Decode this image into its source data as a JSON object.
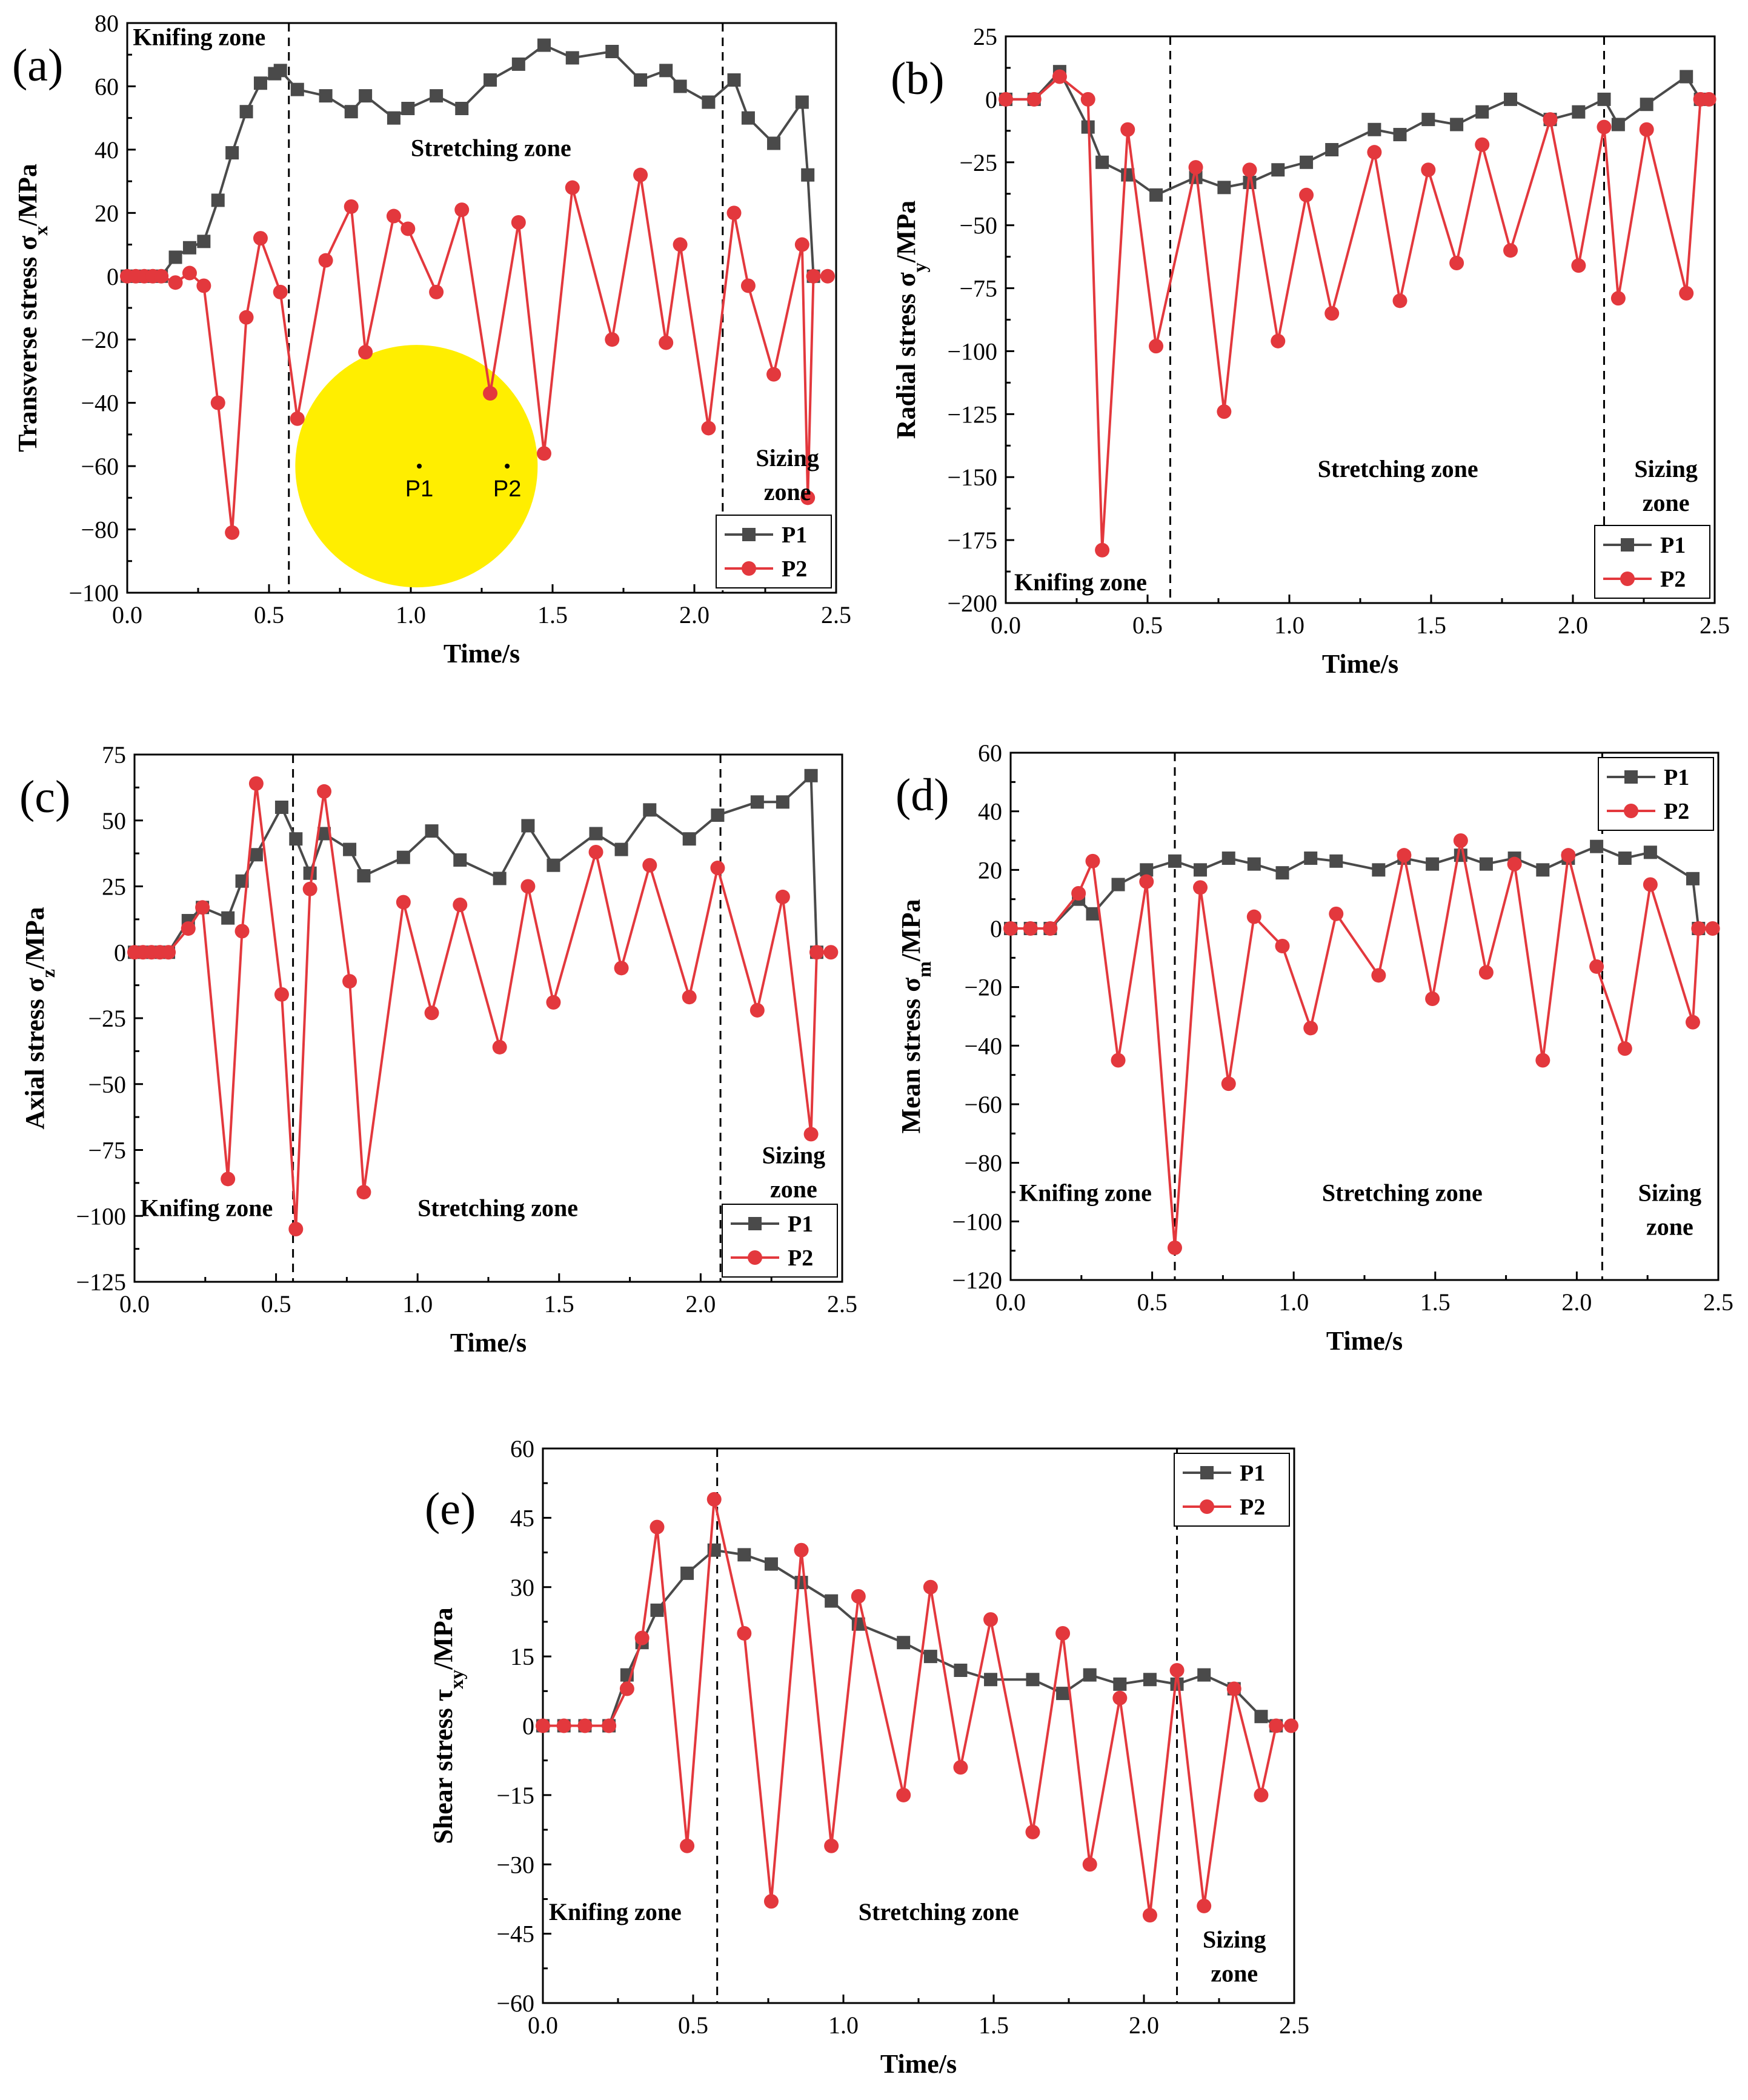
{
  "colors": {
    "P1": "#4a4a4a",
    "P2": "#e3383d",
    "circle": "#ffee00"
  },
  "chart_data": [
    {
      "id": "a",
      "type": "line",
      "panel_label": "(a)",
      "xlabel": "Time/s",
      "ylabel_parts": [
        "Transverse stress σ",
        "x",
        "/MPa"
      ],
      "xlim": [
        0,
        2.5
      ],
      "ylim": [
        -100,
        80
      ],
      "xticks": [
        0,
        0.5,
        1,
        1.5,
        2,
        2.5
      ],
      "xtick_labels": [
        "0.0",
        "0.5",
        "1.0",
        "1.5",
        "2.0",
        "2.5"
      ],
      "yticks": [
        -100,
        -80,
        -60,
        -40,
        -20,
        0,
        20,
        40,
        60,
        80
      ],
      "ytick_labels": [
        "−100",
        "−80",
        "−60",
        "−40",
        "−20",
        "0",
        "20",
        "40",
        "60",
        "80"
      ],
      "vlines": [
        0.57,
        2.1
      ],
      "annotations": [
        {
          "lines": [
            "Knifing zone"
          ],
          "x": 0.02,
          "y": 73
        },
        {
          "lines": [
            "Stretching zone"
          ],
          "x": 1.0,
          "y": 38
        },
        {
          "lines": [
            "Sizing",
            "zone"
          ],
          "x": 2.2,
          "y": -60
        }
      ],
      "legend": [
        "P1",
        "P2"
      ],
      "legend_pos": "bottom-right",
      "inset": {
        "type": "circle",
        "cx": 1.02,
        "cy": -60,
        "points": [
          {
            "label": "P1",
            "x": 1.03,
            "y": -60
          },
          {
            "label": "P2",
            "x": 1.34,
            "y": -60
          }
        ]
      },
      "series": [
        {
          "name": "P1",
          "x": [
            0,
            0.03,
            0.06,
            0.09,
            0.12,
            0.17,
            0.22,
            0.27,
            0.32,
            0.37,
            0.42,
            0.47,
            0.52,
            0.54,
            0.6,
            0.7,
            0.79,
            0.84,
            0.94,
            0.99,
            1.09,
            1.18,
            1.28,
            1.38,
            1.47,
            1.57,
            1.71,
            1.81,
            1.9,
            1.95,
            2.05,
            2.14,
            2.19,
            2.28,
            2.38,
            2.4,
            2.42
          ],
          "y": [
            0,
            0,
            0,
            0,
            0,
            6,
            9,
            11,
            24,
            39,
            52,
            61,
            64,
            65,
            59,
            57,
            52,
            57,
            50,
            53,
            57,
            53,
            62,
            67,
            73,
            69,
            71,
            62,
            65,
            60,
            55,
            62,
            50,
            42,
            55,
            32,
            0
          ]
        },
        {
          "name": "P2",
          "x": [
            0,
            0.03,
            0.06,
            0.09,
            0.12,
            0.17,
            0.22,
            0.27,
            0.32,
            0.37,
            0.42,
            0.47,
            0.54,
            0.6,
            0.7,
            0.79,
            0.84,
            0.94,
            0.99,
            1.09,
            1.18,
            1.28,
            1.38,
            1.47,
            1.57,
            1.71,
            1.81,
            1.9,
            1.95,
            2.05,
            2.14,
            2.19,
            2.28,
            2.38,
            2.4,
            2.42,
            2.47
          ],
          "y": [
            0,
            0,
            0,
            0,
            0,
            -2,
            1,
            -3,
            -40,
            -81,
            -13,
            12,
            -5,
            -45,
            5,
            22,
            -24,
            19,
            15,
            -5,
            21,
            -37,
            17,
            -56,
            28,
            -20,
            32,
            -21,
            10,
            -48,
            20,
            -3,
            -31,
            10,
            -70,
            0,
            0
          ]
        }
      ]
    },
    {
      "id": "b",
      "type": "line",
      "panel_label": "(b)",
      "xlabel": "Time/s",
      "ylabel_parts": [
        "Radial stress σ",
        "y",
        "/MPa"
      ],
      "xlim": [
        0,
        2.5
      ],
      "ylim": [
        -200,
        25
      ],
      "xticks": [
        0,
        0.5,
        1,
        1.5,
        2,
        2.5
      ],
      "xtick_labels": [
        "0.0",
        "0.5",
        "1.0",
        "1.5",
        "2.0",
        "2.5"
      ],
      "yticks": [
        -200,
        -175,
        -150,
        -125,
        -100,
        -75,
        -50,
        -25,
        0,
        25
      ],
      "ytick_labels": [
        "−200",
        "−175",
        "−150",
        "−125",
        "−100",
        "−75",
        "−50",
        "−25",
        "0",
        "25"
      ],
      "vlines": [
        0.58,
        2.11
      ],
      "annotations": [
        {
          "lines": [
            "Knifing zone"
          ],
          "x": 0.03,
          "y": -195
        },
        {
          "lines": [
            "Stretching zone"
          ],
          "x": 1.1,
          "y": -150
        },
        {
          "lines": [
            "Sizing",
            "zone"
          ],
          "x": 2.2,
          "y": -150
        }
      ],
      "legend": [
        "P1",
        "P2"
      ],
      "legend_pos": "bottom-right",
      "series": [
        {
          "name": "P1",
          "x": [
            0,
            0.1,
            0.19,
            0.29,
            0.34,
            0.43,
            0.53,
            0.67,
            0.77,
            0.86,
            0.96,
            1.06,
            1.15,
            1.3,
            1.39,
            1.49,
            1.59,
            1.68,
            1.78,
            1.92,
            2.02,
            2.11,
            2.16,
            2.26,
            2.4,
            2.45
          ],
          "y": [
            0,
            0,
            11,
            -11,
            -25,
            -30,
            -38,
            -31,
            -35,
            -33,
            -28,
            -25,
            -20,
            -12,
            -14,
            -8,
            -10,
            -5,
            0,
            -8,
            -5,
            0,
            -10,
            -2,
            9,
            0
          ]
        },
        {
          "name": "P2",
          "x": [
            0,
            0.1,
            0.19,
            0.29,
            0.34,
            0.43,
            0.53,
            0.67,
            0.77,
            0.86,
            0.96,
            1.06,
            1.15,
            1.3,
            1.39,
            1.49,
            1.59,
            1.68,
            1.78,
            1.92,
            2.02,
            2.11,
            2.16,
            2.26,
            2.4,
            2.45,
            2.48
          ],
          "y": [
            0,
            0,
            9,
            0,
            -179,
            -12,
            -98,
            -27,
            -124,
            -28,
            -96,
            -38,
            -85,
            -21,
            -80,
            -28,
            -65,
            -18,
            -60,
            -8,
            -66,
            -11,
            -79,
            -12,
            -77,
            0,
            0
          ]
        }
      ]
    },
    {
      "id": "c",
      "type": "line",
      "panel_label": "(c)",
      "xlabel": "Time/s",
      "ylabel_parts": [
        "Axial stress σ",
        "z",
        "/MPa"
      ],
      "xlim": [
        0,
        2.5
      ],
      "ylim": [
        -125,
        75
      ],
      "xticks": [
        0,
        0.5,
        1,
        1.5,
        2,
        2.5
      ],
      "xtick_labels": [
        "0.0",
        "0.5",
        "1.0",
        "1.5",
        "2.0",
        "2.5"
      ],
      "yticks": [
        -125,
        -100,
        -75,
        -50,
        -25,
        0,
        25,
        50,
        75
      ],
      "ytick_labels": [
        "−125",
        "−100",
        "−75",
        "−50",
        "−25",
        "0",
        "25",
        "50",
        "75"
      ],
      "vlines": [
        0.56,
        2.07
      ],
      "annotations": [
        {
          "lines": [
            "Knifing zone"
          ],
          "x": 0.02,
          "y": -100
        },
        {
          "lines": [
            "Stretching zone"
          ],
          "x": 1.0,
          "y": -100
        },
        {
          "lines": [
            "Sizing",
            "zone"
          ],
          "x": 2.2,
          "y": -80
        }
      ],
      "legend": [
        "P1",
        "P2"
      ],
      "legend_pos": "bottom-right",
      "series": [
        {
          "name": "P1",
          "x": [
            0,
            0.03,
            0.06,
            0.09,
            0.12,
            0.19,
            0.24,
            0.33,
            0.38,
            0.43,
            0.52,
            0.57,
            0.62,
            0.67,
            0.76,
            0.81,
            0.95,
            1.05,
            1.15,
            1.29,
            1.39,
            1.48,
            1.63,
            1.72,
            1.82,
            1.96,
            2.06,
            2.2,
            2.29,
            2.39,
            2.41
          ],
          "y": [
            0,
            0,
            0,
            0,
            0,
            12,
            17,
            13,
            27,
            37,
            55,
            43,
            30,
            45,
            39,
            29,
            36,
            46,
            35,
            28,
            48,
            33,
            45,
            39,
            54,
            43,
            52,
            57,
            57,
            67,
            0
          ]
        },
        {
          "name": "P2",
          "x": [
            0,
            0.03,
            0.06,
            0.09,
            0.12,
            0.19,
            0.24,
            0.33,
            0.38,
            0.43,
            0.52,
            0.57,
            0.62,
            0.67,
            0.76,
            0.81,
            0.95,
            1.05,
            1.15,
            1.29,
            1.39,
            1.48,
            1.63,
            1.72,
            1.82,
            1.96,
            2.06,
            2.2,
            2.29,
            2.39,
            2.41,
            2.46
          ],
          "y": [
            0,
            0,
            0,
            0,
            0,
            9,
            17,
            -86,
            8,
            64,
            -16,
            -105,
            24,
            61,
            -11,
            -91,
            19,
            -23,
            18,
            -36,
            25,
            -19,
            38,
            -6,
            33,
            -17,
            32,
            -22,
            21,
            -69,
            0,
            0
          ]
        }
      ]
    },
    {
      "id": "d",
      "type": "line",
      "panel_label": "(d)",
      "xlabel": "Time/s",
      "ylabel_parts": [
        "Mean stress σ",
        "m",
        "/MPa"
      ],
      "xlim": [
        0,
        2.5
      ],
      "ylim": [
        -120,
        60
      ],
      "xticks": [
        0,
        0.5,
        1,
        1.5,
        2,
        2.5
      ],
      "xtick_labels": [
        "0.0",
        "0.5",
        "1.0",
        "1.5",
        "2.0",
        "2.5"
      ],
      "yticks": [
        -120,
        -100,
        -80,
        -60,
        -40,
        -20,
        0,
        20,
        40,
        60
      ],
      "ytick_labels": [
        "−120",
        "−100",
        "−80",
        "−60",
        "−40",
        "−20",
        "0",
        "20",
        "40",
        "60"
      ],
      "vlines": [
        0.58,
        2.09
      ],
      "annotations": [
        {
          "lines": [
            "Knifing zone"
          ],
          "x": 0.03,
          "y": -93
        },
        {
          "lines": [
            "Stretching zone"
          ],
          "x": 1.1,
          "y": -93
        },
        {
          "lines": [
            "Sizing",
            "zone"
          ],
          "x": 2.2,
          "y": -93
        }
      ],
      "legend": [
        "P1",
        "P2"
      ],
      "legend_pos": "top-right",
      "series": [
        {
          "name": "P1",
          "x": [
            0,
            0.07,
            0.14,
            0.24,
            0.29,
            0.38,
            0.48,
            0.58,
            0.67,
            0.77,
            0.86,
            0.96,
            1.06,
            1.15,
            1.3,
            1.39,
            1.49,
            1.59,
            1.68,
            1.78,
            1.88,
            1.97,
            2.07,
            2.17,
            2.26,
            2.41,
            2.43
          ],
          "y": [
            0,
            0,
            0,
            10,
            5,
            15,
            20,
            23,
            20,
            24,
            22,
            19,
            24,
            23,
            20,
            24,
            22,
            25,
            22,
            24,
            20,
            24,
            28,
            24,
            26,
            17,
            0
          ]
        },
        {
          "name": "P2",
          "x": [
            0,
            0.07,
            0.14,
            0.24,
            0.29,
            0.38,
            0.48,
            0.58,
            0.67,
            0.77,
            0.86,
            0.96,
            1.06,
            1.15,
            1.3,
            1.39,
            1.49,
            1.59,
            1.68,
            1.78,
            1.88,
            1.97,
            2.07,
            2.17,
            2.26,
            2.41,
            2.43,
            2.48
          ],
          "y": [
            0,
            0,
            0,
            12,
            23,
            -45,
            16,
            -109,
            14,
            -53,
            4,
            -6,
            -34,
            5,
            -16,
            25,
            -24,
            30,
            -15,
            22,
            -45,
            25,
            -13,
            -41,
            15,
            -32,
            0,
            0
          ]
        }
      ]
    },
    {
      "id": "e",
      "type": "line",
      "panel_label": "(e)",
      "xlabel": "Time/s",
      "ylabel_parts": [
        "Shear stress τ",
        "xy",
        "/MPa"
      ],
      "xlim": [
        0,
        2.5
      ],
      "ylim": [
        -60,
        60
      ],
      "xticks": [
        0,
        0.5,
        1,
        1.5,
        2,
        2.5
      ],
      "xtick_labels": [
        "0.0",
        "0.5",
        "1.0",
        "1.5",
        "2.0",
        "2.5"
      ],
      "yticks": [
        -60,
        -45,
        -30,
        -15,
        0,
        15,
        30,
        45,
        60
      ],
      "ytick_labels": [
        "−60",
        "−45",
        "−30",
        "−15",
        "0",
        "15",
        "30",
        "45",
        "60"
      ],
      "vlines": [
        0.58,
        2.11
      ],
      "annotations": [
        {
          "lines": [
            "Knifing zone"
          ],
          "x": 0.02,
          "y": -42
        },
        {
          "lines": [
            "Stretching zone"
          ],
          "x": 1.05,
          "y": -42
        },
        {
          "lines": [
            "Sizing",
            "zone"
          ],
          "x": 2.18,
          "y": -48
        }
      ],
      "legend": [
        "P1",
        "P2"
      ],
      "legend_pos": "top-right",
      "series": [
        {
          "name": "P1",
          "x": [
            0,
            0.07,
            0.14,
            0.22,
            0.28,
            0.33,
            0.38,
            0.48,
            0.57,
            0.67,
            0.76,
            0.86,
            0.96,
            1.05,
            1.2,
            1.29,
            1.39,
            1.49,
            1.63,
            1.73,
            1.82,
            1.92,
            2.02,
            2.11,
            2.2,
            2.3,
            2.39,
            2.44
          ],
          "y": [
            0,
            0,
            0,
            0,
            11,
            18,
            25,
            33,
            38,
            37,
            35,
            31,
            27,
            22,
            18,
            15,
            12,
            10,
            10,
            7,
            11,
            9,
            10,
            9,
            11,
            8,
            2,
            0
          ]
        },
        {
          "name": "P2",
          "x": [
            0,
            0.07,
            0.14,
            0.22,
            0.28,
            0.33,
            0.38,
            0.48,
            0.57,
            0.67,
            0.76,
            0.86,
            0.96,
            1.05,
            1.2,
            1.29,
            1.39,
            1.49,
            1.63,
            1.73,
            1.82,
            1.92,
            2.02,
            2.11,
            2.2,
            2.3,
            2.39,
            2.44,
            2.49
          ],
          "y": [
            0,
            0,
            0,
            0,
            8,
            19,
            43,
            -26,
            49,
            20,
            -38,
            38,
            -26,
            28,
            -15,
            30,
            -9,
            23,
            -23,
            20,
            -30,
            6,
            -41,
            12,
            -39,
            8,
            -15,
            0,
            0
          ]
        }
      ]
    }
  ]
}
